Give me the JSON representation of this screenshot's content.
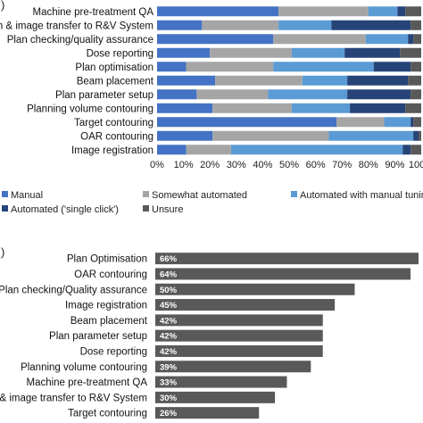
{
  "panels": {
    "a_letter": ")",
    "b_letter": ")"
  },
  "chart_data": [
    {
      "type": "bar",
      "orientation": "horizontal",
      "stacked": true,
      "categories": [
        "Machine pre-treatment QA",
        "an & image transfer to R&V System",
        "Plan checking/quality assurance",
        "Dose reporting",
        "Plan optimisation",
        "Beam placement",
        "Plan parameter setup",
        "Planning volume contouring",
        "Target contouring",
        "OAR contouring",
        "Image registration"
      ],
      "series": [
        {
          "name": "Manual",
          "color": "#4472c4",
          "values": [
            46,
            17,
            44,
            20,
            11,
            22,
            15,
            21,
            68,
            21,
            11
          ]
        },
        {
          "name": "Somewhat automated",
          "color": "#a5a5a5",
          "values": [
            34,
            29,
            35,
            31,
            33,
            33,
            27,
            30,
            18,
            44,
            17
          ]
        },
        {
          "name": "Automated with manual tuning",
          "color": "#5b9bd5",
          "values": [
            11,
            20,
            16,
            20,
            38,
            17,
            30,
            22,
            10,
            32,
            65
          ]
        },
        {
          "name": "Automated ('single click')",
          "color": "#264478",
          "values": [
            3,
            30,
            2,
            21,
            14,
            23,
            24,
            21,
            1,
            2,
            3
          ]
        },
        {
          "name": "Unsure",
          "color": "#595959",
          "values": [
            6,
            4,
            3,
            8,
            4,
            5,
            4,
            6,
            3,
            1,
            4
          ]
        }
      ],
      "xlim": [
        0,
        100
      ],
      "xticks": [
        "0%",
        "10%",
        "20%",
        "30%",
        "40%",
        "50%",
        "60%",
        "70%",
        "80%",
        "90%",
        "100%"
      ],
      "legend": "bottom",
      "legend_labels": [
        "Manual",
        "Somewhat automated",
        "Automated with manual tuning",
        "Automated ('single click')",
        "Unsure"
      ]
    },
    {
      "type": "bar",
      "orientation": "horizontal",
      "color": "#595959",
      "categories": [
        "Plan Optimisation",
        "OAR contouring",
        "Plan checking/Quality assurance",
        "Image registration",
        "Beam placement",
        "Plan parameter setup",
        "Dose reporting",
        "Planning volume contouring",
        "Machine pre-treatment QA",
        "an & image transfer to R&V System",
        "Target contouring"
      ],
      "values": [
        66,
        64,
        50,
        45,
        42,
        42,
        42,
        39,
        33,
        30,
        26
      ],
      "data_labels": [
        "66%",
        "64%",
        "50%",
        "45%",
        "42%",
        "42%",
        "42%",
        "39%",
        "33%",
        "30%",
        "26%"
      ]
    }
  ]
}
